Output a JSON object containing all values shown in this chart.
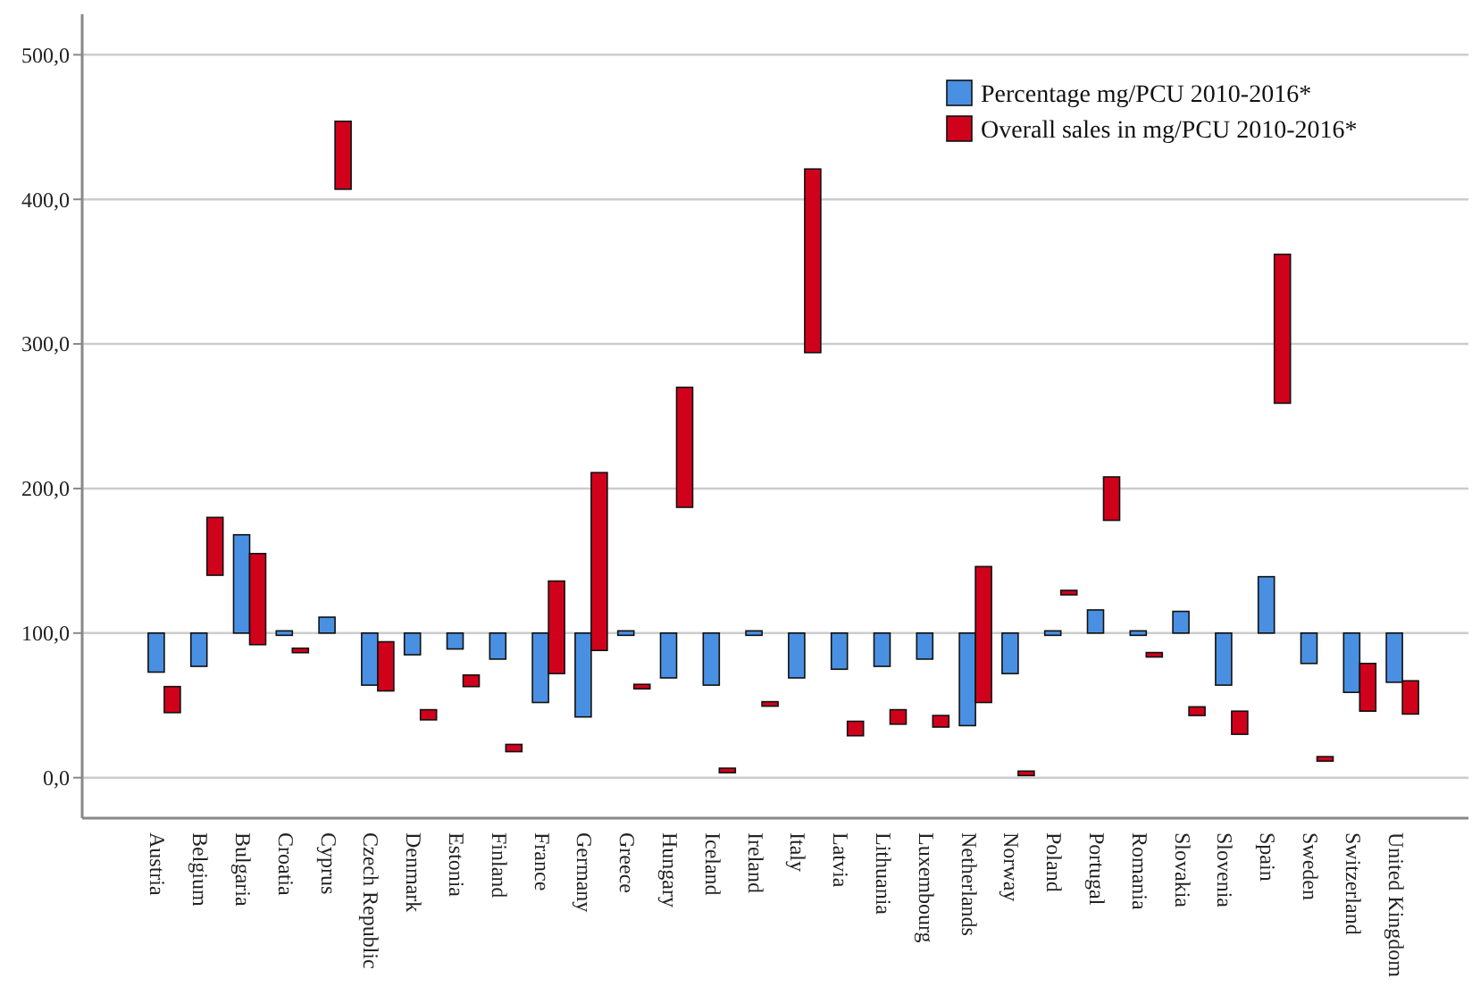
{
  "chart_data": {
    "type": "bar",
    "categories": [
      "Austria",
      "Belgium",
      "Bulgaria",
      "Croatia",
      "Cyprus",
      "Czech Republic",
      "Denmark",
      "Estonia",
      "Finland",
      "France",
      "Germany",
      "Greece",
      "Hungary",
      "Iceland",
      "Ireland",
      "Italy",
      "Latvia",
      "Lithuania",
      "Luxembourg",
      "Netherlands",
      "Norway",
      "Poland",
      "Portugal",
      "Romania",
      "Slovakia",
      "Slovenia",
      "Spain",
      "Sweden",
      "Switzerland",
      "United Kingdom"
    ],
    "series": [
      {
        "name": "Percentage mg/PCU 2010-2016*",
        "color": "#4a90e2",
        "base": [
          100,
          100,
          100,
          100,
          100,
          100,
          100,
          100,
          100,
          100,
          100,
          100,
          100,
          100,
          100,
          100,
          100,
          100,
          100,
          100,
          100,
          100,
          100,
          100,
          100,
          100,
          100,
          100,
          100,
          100
        ],
        "values": [
          -27,
          -23,
          68,
          0,
          11,
          -36,
          -15,
          -11,
          -18,
          -48,
          -58,
          0,
          -31,
          -36,
          0,
          -31,
          -25,
          -23,
          -18,
          -64,
          -28,
          0,
          16,
          0,
          15,
          -36,
          39,
          -21,
          -41,
          -34
        ]
      },
      {
        "name": "Overall sales in mg/PCU 2010-2016*",
        "color": "#d0021b",
        "base": [
          45,
          140,
          92,
          88,
          407,
          60,
          40,
          63,
          18,
          72,
          88,
          63,
          187,
          5,
          51,
          294,
          29,
          37,
          35,
          52,
          3,
          128,
          178,
          85,
          43,
          30,
          259,
          13,
          46,
          44
        ],
        "values": [
          18,
          40,
          63,
          0,
          47,
          34,
          7,
          8,
          5,
          64,
          123,
          0,
          83,
          0,
          0,
          127,
          10,
          10,
          8,
          94,
          0,
          0,
          30,
          0,
          6,
          16,
          103,
          0,
          33,
          23
        ]
      }
    ],
    "ylim": [
      -28,
      528
    ],
    "yticks": [
      {
        "value": 0,
        "label": "0,0"
      },
      {
        "value": 100,
        "label": "100,0"
      },
      {
        "value": 200,
        "label": "200,0"
      },
      {
        "value": 300,
        "label": "300,0"
      },
      {
        "value": 400,
        "label": "400,0"
      },
      {
        "value": 500,
        "label": "500,0"
      }
    ],
    "grid": "y",
    "legend": "top right"
  }
}
